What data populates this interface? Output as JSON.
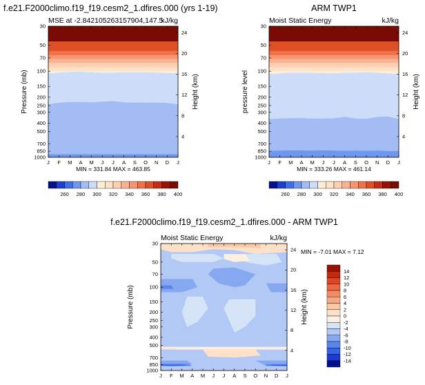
{
  "chart_data": [
    {
      "type": "heatmap",
      "title": "f.e21.F2000climo.f19_f19.cesm2_1.dfires.000 (yrs 1-19)",
      "left_label": "MSE at -2.842105263157904,147.5",
      "right_label": "kJ/kg",
      "ylabel": "Pressure (mb)",
      "y2label": "Height (km)",
      "x_ticks": [
        "J",
        "F",
        "M",
        "A",
        "M",
        "J",
        "J",
        "A",
        "S",
        "O",
        "N",
        "D",
        "J"
      ],
      "y_ticks": [
        "30",
        "50",
        "70",
        "100",
        "150",
        "200",
        "250",
        "300",
        "400",
        "500",
        "700",
        "850",
        "1000"
      ],
      "y2_ticks": [
        "24",
        "20",
        "16",
        "12",
        "8",
        "4"
      ],
      "min_max_text": "MIN = 331.84  MAX = 463.85",
      "colorbar_labels": [
        "260",
        "280",
        "300",
        "320",
        "340",
        "360",
        "380",
        "400"
      ],
      "bands": [
        {
          "upper": [
            45,
            45,
            45,
            45,
            45,
            45,
            45,
            45,
            45,
            45,
            45,
            45,
            45
          ],
          "level": 12
        },
        {
          "upper": [
            58,
            58,
            58,
            58,
            58,
            58,
            58,
            58,
            58,
            58,
            58,
            58,
            58
          ],
          "level": 11
        },
        {
          "upper": [
            65,
            65,
            65,
            65,
            65,
            65,
            65,
            65,
            65,
            65,
            65,
            65,
            65
          ],
          "level": 10
        },
        {
          "upper": [
            72,
            72,
            72,
            72,
            72,
            72,
            72,
            72,
            72,
            72,
            72,
            72,
            72
          ],
          "level": 9
        },
        {
          "upper": [
            80,
            80,
            80,
            80,
            80,
            80,
            80,
            80,
            80,
            80,
            80,
            80,
            80
          ],
          "level": 8
        },
        {
          "upper": [
            90,
            90,
            90,
            90,
            90,
            90,
            90,
            90,
            90,
            90,
            90,
            90,
            90
          ],
          "level": 7
        },
        {
          "upper": [
            100,
            100,
            100,
            100,
            100,
            100,
            100,
            100,
            100,
            100,
            100,
            100,
            100
          ],
          "level": 6
        },
        {
          "upper": [
            106,
            104,
            102,
            101,
            103,
            104,
            104,
            103,
            103,
            103,
            104,
            105,
            106
          ],
          "level": 5
        },
        {
          "upper": [
            243,
            232,
            228,
            227,
            229,
            226,
            222,
            230,
            231,
            232,
            231,
            234,
            242
          ],
          "level": 4
        },
        {
          "upper": [
            920,
            925,
            921,
            920,
            922,
            920,
            920,
            922,
            921,
            920,
            922,
            920,
            920
          ],
          "level": 3
        },
        {
          "upper": [
            1000,
            1000,
            1000,
            1000,
            1000,
            1000,
            1000,
            1000,
            1000,
            1000,
            1000,
            1000,
            1000
          ],
          "level": 4
        }
      ]
    },
    {
      "type": "heatmap",
      "title": "ARM TWP1",
      "left_label": "Moist Static Energy",
      "right_label": "kJ/kg",
      "ylabel": "pressure level",
      "y2label": "Height (km)",
      "x_ticks": [
        "J",
        "F",
        "M",
        "A",
        "M",
        "J",
        "J",
        "A",
        "S",
        "O",
        "N",
        "D",
        "J"
      ],
      "y_ticks": [
        "30",
        "50",
        "70",
        "100",
        "150",
        "200",
        "250",
        "300",
        "400",
        "500",
        "700",
        "850",
        "1000"
      ],
      "y2_ticks": [
        "24",
        "20",
        "16",
        "12",
        "8",
        "4"
      ],
      "min_max_text": "MIN = 333.26  MAX = 461.14",
      "colorbar_labels": [
        "260",
        "280",
        "300",
        "320",
        "340",
        "360",
        "380",
        "400"
      ],
      "bands": [
        {
          "upper": [
            45,
            45,
            45,
            45,
            45,
            45,
            45,
            45,
            45,
            45,
            45,
            45,
            45
          ],
          "level": 12
        },
        {
          "upper": [
            58,
            58,
            58,
            58,
            58,
            58,
            58,
            58,
            58,
            58,
            58,
            58,
            58
          ],
          "level": 11
        },
        {
          "upper": [
            65,
            65,
            65,
            65,
            65,
            65,
            65,
            65,
            65,
            65,
            65,
            65,
            65
          ],
          "level": 10
        },
        {
          "upper": [
            72,
            72,
            72,
            72,
            72,
            72,
            72,
            72,
            72,
            72,
            72,
            72,
            72
          ],
          "level": 9
        },
        {
          "upper": [
            80,
            80,
            80,
            80,
            80,
            80,
            80,
            80,
            80,
            80,
            80,
            80,
            80
          ],
          "level": 8
        },
        {
          "upper": [
            90,
            90,
            90,
            90,
            90,
            90,
            90,
            90,
            90,
            90,
            90,
            90,
            90
          ],
          "level": 7
        },
        {
          "upper": [
            100,
            100,
            100,
            100,
            100,
            100,
            100,
            100,
            100,
            100,
            100,
            100,
            100
          ],
          "level": 6
        },
        {
          "upper": [
            108,
            106,
            104,
            104,
            104,
            106,
            106,
            104,
            104,
            103,
            104,
            106,
            108
          ],
          "level": 5
        },
        {
          "upper": [
            360,
            355,
            350,
            350,
            355,
            355,
            352,
            338,
            355,
            358,
            340,
            336,
            360
          ],
          "level": 4
        },
        {
          "upper": [
            840,
            835,
            830,
            832,
            835,
            830,
            835,
            840,
            835,
            840,
            835,
            845,
            842
          ],
          "level": 3
        },
        {
          "upper": [
            1000,
            1000,
            1000,
            1000,
            1000,
            1000,
            1000,
            1000,
            1000,
            1000,
            1000,
            1000,
            1000
          ],
          "level": 4
        }
      ]
    },
    {
      "type": "heatmap",
      "title": "f.e21.F2000climo.f19_f19.cesm2_1.dfires.000 - ARM TWP1",
      "left_label": "Moist Static Energy",
      "right_label": "kJ/kg",
      "ylabel": "Pressure (mb)",
      "y2label": "Height (km)",
      "x_ticks": [
        "J",
        "F",
        "M",
        "A",
        "M",
        "J",
        "J",
        "A",
        "S",
        "O",
        "N",
        "D",
        "J"
      ],
      "y_ticks": [
        "30",
        "50",
        "70",
        "100",
        "150",
        "200",
        "250",
        "300",
        "400",
        "500",
        "700",
        "850",
        "1000"
      ],
      "y2_ticks": [
        "24",
        "20",
        "16",
        "12",
        "8",
        "4"
      ],
      "min_max_text": "MIN = -7.01  MAX =   7.12",
      "colorbar_labels": [
        "14",
        "12",
        "10",
        "8",
        "6",
        "4",
        "2",
        "0",
        "-2",
        "-4",
        "-6",
        "-8",
        "-10",
        "-12",
        "-14"
      ],
      "background_level": 5,
      "patches": [
        {
          "level": 8,
          "points": [
            [
              0,
              30
            ],
            [
              12,
              30
            ],
            [
              12,
              38
            ],
            [
              9,
              40
            ],
            [
              7,
              36
            ],
            [
              5,
              35
            ],
            [
              3,
              38
            ],
            [
              1,
              38
            ],
            [
              0,
              35
            ]
          ]
        },
        {
          "level": 9,
          "points": [
            [
              4.5,
              30
            ],
            [
              9.5,
              30
            ],
            [
              9.5,
              34
            ],
            [
              7.5,
              33
            ],
            [
              6,
              33
            ],
            [
              4.5,
              33
            ]
          ]
        },
        {
          "level": 6,
          "points": [
            [
              1,
              40
            ],
            [
              5,
              40
            ],
            [
              6,
              45
            ],
            [
              5,
              50
            ],
            [
              2,
              50
            ],
            [
              1,
              45
            ]
          ]
        },
        {
          "level": 6,
          "points": [
            [
              8,
              40
            ],
            [
              11,
              40
            ],
            [
              11.5,
              50
            ],
            [
              10,
              55
            ],
            [
              8,
              50
            ]
          ]
        },
        {
          "level": 7,
          "points": [
            [
              6,
              40
            ],
            [
              8,
              40
            ],
            [
              8.5,
              48
            ],
            [
              7,
              50
            ],
            [
              6,
              46
            ]
          ]
        },
        {
          "level": 4,
          "points": [
            [
              5,
              60
            ],
            [
              7,
              58
            ],
            [
              9,
              70
            ],
            [
              8,
              95
            ],
            [
              7,
              100
            ],
            [
              5.5,
              90
            ],
            [
              4.5,
              70
            ]
          ]
        },
        {
          "level": 4,
          "points": [
            [
              0,
              80
            ],
            [
              3,
              80
            ],
            [
              3.5,
              100
            ],
            [
              2,
              115
            ],
            [
              0,
              115
            ]
          ]
        },
        {
          "level": 4,
          "points": [
            [
              10,
              90
            ],
            [
              12,
              90
            ],
            [
              12,
              115
            ],
            [
              10.5,
              115
            ]
          ]
        },
        {
          "level": 3,
          "points": [
            [
              0,
              95
            ],
            [
              1,
              95
            ],
            [
              1.2,
              105
            ],
            [
              0,
              105
            ]
          ]
        },
        {
          "level": 6,
          "points": [
            [
              2.5,
              130
            ],
            [
              4,
              130
            ],
            [
              4.5,
              180
            ],
            [
              3.5,
              260
            ],
            [
              2.5,
              300
            ],
            [
              2,
              200
            ]
          ]
        },
        {
          "level": 6,
          "points": [
            [
              6.5,
              140
            ],
            [
              9,
              140
            ],
            [
              9,
              220
            ],
            [
              8,
              300
            ],
            [
              7,
              350
            ],
            [
              6.5,
              250
            ],
            [
              6,
              180
            ]
          ]
        },
        {
          "level": 7,
          "points": [
            [
              0,
              520
            ],
            [
              12,
              520
            ],
            [
              12,
              560
            ],
            [
              0,
              560
            ]
          ]
        },
        {
          "level": 8,
          "points": [
            [
              4,
              560
            ],
            [
              9,
              560
            ],
            [
              9.5,
              660
            ],
            [
              7,
              700
            ],
            [
              4.5,
              680
            ]
          ]
        },
        {
          "level": 8,
          "points": [
            [
              0,
              540
            ],
            [
              1.5,
              540
            ],
            [
              1.5,
              560
            ],
            [
              0,
              560
            ]
          ]
        },
        {
          "level": 4,
          "points": [
            [
              0,
              760
            ],
            [
              2.5,
              760
            ],
            [
              3,
              840
            ],
            [
              2,
              880
            ],
            [
              0,
              880
            ]
          ]
        },
        {
          "level": 4,
          "points": [
            [
              9,
              760
            ],
            [
              12,
              760
            ],
            [
              12,
              890
            ],
            [
              10,
              880
            ]
          ]
        },
        {
          "level": 3,
          "points": [
            [
              0,
              830
            ],
            [
              2.5,
              830
            ],
            [
              3,
              880
            ],
            [
              1,
              890
            ],
            [
              0,
              880
            ]
          ]
        },
        {
          "level": 3,
          "points": [
            [
              10,
              840
            ],
            [
              12,
              840
            ],
            [
              12,
              890
            ],
            [
              10,
              880
            ]
          ]
        },
        {
          "level": 2,
          "points": [
            [
              0,
              850
            ],
            [
              2,
              850
            ],
            [
              2.5,
              875
            ],
            [
              0,
              875
            ]
          ]
        },
        {
          "level": 2,
          "points": [
            [
              10.5,
              850
            ],
            [
              12,
              850
            ],
            [
              12,
              875
            ],
            [
              10.5,
              875
            ]
          ]
        }
      ]
    }
  ],
  "colors": {
    "mse_levels": [
      "#02108a",
      "#1b3fd3",
      "#3d6fea",
      "#6f97ef",
      "#a3bcf3",
      "#cddcf8",
      "#fdeed8",
      "#fde2c8",
      "#fcd0b0",
      "#fab290",
      "#f89470",
      "#f07248",
      "#e05028",
      "#c42c14",
      "#9a1008",
      "#7a0a04"
    ],
    "diff_levels": [
      "#02108a",
      "#1c3bd0",
      "#3563e6",
      "#5a86ec",
      "#86a8f0",
      "#b2c9f5",
      "#d6e4f8",
      "#fef0e0",
      "#fde0c8",
      "#fbc7a4",
      "#f8a884",
      "#f28a62",
      "#ec6842",
      "#e04524",
      "#c52a10",
      "#9c1106"
    ]
  }
}
